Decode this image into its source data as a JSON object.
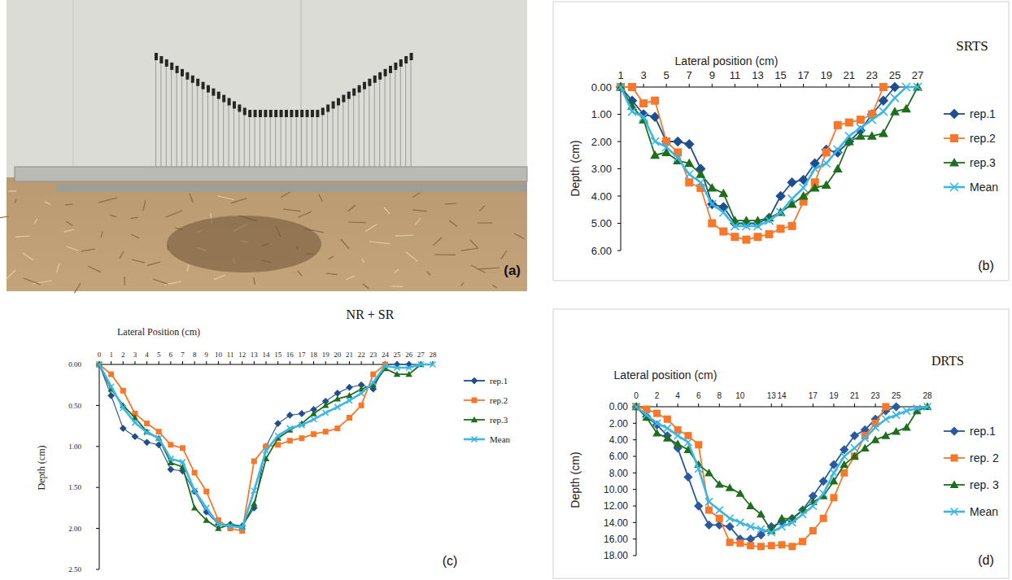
{
  "photo": {
    "panel": "(a)"
  },
  "chart_data": [
    {
      "type": "line",
      "title": "SRTS",
      "panel": "(b)",
      "x_label": "Lateral position (cm)",
      "y_label": "Depth (cm)",
      "x": [
        1,
        2,
        3,
        4,
        5,
        6,
        7,
        8,
        9,
        10,
        11,
        12,
        13,
        14,
        15,
        16,
        17,
        18,
        19,
        20,
        21,
        22,
        23,
        24,
        25,
        26,
        27
      ],
      "xlim": [
        1,
        27
      ],
      "xticks": [
        1,
        3,
        5,
        7,
        9,
        11,
        13,
        15,
        17,
        19,
        21,
        23,
        25,
        27
      ],
      "ylim": [
        0,
        6
      ],
      "yticks": [
        {
          "value": 0,
          "label": "0.00"
        },
        {
          "value": 1,
          "label": "1.00"
        },
        {
          "value": 2,
          "label": "2.00"
        },
        {
          "value": 3,
          "label": "3.00"
        },
        {
          "value": 4,
          "label": "4.00"
        },
        {
          "value": 5,
          "label": "5.00"
        },
        {
          "value": 6,
          "label": "6.00"
        }
      ],
      "legend": "right",
      "series": [
        {
          "name": "rep.1",
          "color": "#1f4e8c",
          "marker": "diamond",
          "values": [
            0,
            0.5,
            1.0,
            1.1,
            2.0,
            2.0,
            2.1,
            3.0,
            4.3,
            4.4,
            5.0,
            5.0,
            5.0,
            4.8,
            4.0,
            3.5,
            3.4,
            2.8,
            2.3,
            2.4,
            2.0,
            1.6,
            1.0,
            0.5,
            0,
            null,
            null
          ]
        },
        {
          "name": "rep.2",
          "color": "#f7782a",
          "marker": "square",
          "values": [
            0,
            0,
            0.6,
            0.5,
            2.0,
            2.4,
            3.5,
            3.7,
            5.0,
            5.3,
            5.5,
            5.6,
            5.5,
            5.4,
            5.2,
            5.1,
            4.2,
            3.5,
            2.4,
            1.4,
            1.3,
            1.2,
            1.0,
            0,
            null,
            null,
            null
          ]
        },
        {
          "name": "rep.3",
          "color": "#1e6e1e",
          "marker": "triangle",
          "values": [
            0,
            0.7,
            1.2,
            2.5,
            2.4,
            2.7,
            2.8,
            3.2,
            3.7,
            3.9,
            4.9,
            4.9,
            4.9,
            4.8,
            4.6,
            4.3,
            4.0,
            3.7,
            3.6,
            3.0,
            2.0,
            1.8,
            1.8,
            1.7,
            0.9,
            0.8,
            0
          ]
        },
        {
          "name": "Mean",
          "color": "#3bb6e6",
          "marker": "x",
          "values": [
            0,
            0.9,
            1.1,
            2.0,
            2.2,
            2.6,
            3.2,
            3.5,
            4.3,
            4.6,
            5.1,
            5.1,
            5.1,
            4.9,
            4.6,
            4.1,
            3.7,
            3.0,
            2.8,
            2.3,
            1.8,
            1.5,
            1.2,
            0.9,
            0.4,
            0,
            0
          ]
        }
      ]
    },
    {
      "type": "line",
      "title": "NR + SR",
      "panel": "(c)",
      "x_label": "Lateral Position (cm)",
      "y_label": "Depth (cm)",
      "x": [
        0,
        1,
        2,
        3,
        4,
        5,
        6,
        7,
        8,
        9,
        10,
        11,
        12,
        13,
        14,
        15,
        16,
        17,
        18,
        19,
        20,
        21,
        22,
        23,
        24,
        25,
        26,
        27,
        28
      ],
      "xlim": [
        0,
        28
      ],
      "xticks": [
        0,
        1,
        2,
        3,
        4,
        5,
        6,
        7,
        8,
        9,
        10,
        11,
        12,
        13,
        14,
        15,
        16,
        17,
        18,
        19,
        20,
        21,
        22,
        23,
        24,
        25,
        26,
        27,
        28
      ],
      "ylim": [
        0,
        2.5
      ],
      "yticks": [
        {
          "value": 0,
          "label": "0.00"
        },
        {
          "value": 0.5,
          "label": "0.50"
        },
        {
          "value": 1,
          "label": "1.00"
        },
        {
          "value": 1.5,
          "label": "1.50"
        },
        {
          "value": 2,
          "label": "2.00"
        },
        {
          "value": 2.5,
          "label": "2.50"
        }
      ],
      "legend": "right",
      "series": [
        {
          "name": "rep.1",
          "color": "#1f4e8c",
          "marker": "diamond",
          "values": [
            0,
            0.38,
            0.78,
            0.88,
            0.95,
            0.98,
            1.28,
            1.3,
            1.55,
            1.8,
            1.95,
            1.95,
            1.97,
            1.75,
            1.0,
            0.72,
            0.62,
            0.6,
            0.55,
            0.45,
            0.35,
            0.28,
            0.25,
            0.3,
            0,
            0,
            0,
            null,
            null
          ]
        },
        {
          "name": "rep.2",
          "color": "#f7782a",
          "marker": "square",
          "values": [
            0,
            0.12,
            0.32,
            0.6,
            0.72,
            0.82,
            0.98,
            1.02,
            1.32,
            1.55,
            1.9,
            2.0,
            2.03,
            1.18,
            1.0,
            0.98,
            0.93,
            0.9,
            0.85,
            0.82,
            0.78,
            0.65,
            0.5,
            0.12,
            0,
            null,
            null,
            null,
            null
          ]
        },
        {
          "name": "rep.3",
          "color": "#1e6e1e",
          "marker": "triangle",
          "values": [
            0,
            0.3,
            0.5,
            0.65,
            0.82,
            0.9,
            1.2,
            1.25,
            1.75,
            1.9,
            2.0,
            1.95,
            1.98,
            1.7,
            1.15,
            0.9,
            0.8,
            0.72,
            0.6,
            0.5,
            0.42,
            0.38,
            0.3,
            0.25,
            0.05,
            0.12,
            0.12,
            0,
            null
          ]
        },
        {
          "name": "Mean",
          "color": "#3bb6e6",
          "marker": "x",
          "values": [
            0,
            0.27,
            0.53,
            0.71,
            0.83,
            0.9,
            1.15,
            1.19,
            1.54,
            1.75,
            1.95,
            1.97,
            1.99,
            1.54,
            1.05,
            0.87,
            0.78,
            0.74,
            0.67,
            0.59,
            0.52,
            0.44,
            0.35,
            0.22,
            0.02,
            0.04,
            0.04,
            0,
            0
          ]
        }
      ]
    },
    {
      "type": "line",
      "title": "DRTS",
      "panel": "(d)",
      "x_label": "Lateral position (cm)",
      "y_label": "Depth (cm)",
      "x": [
        0,
        1,
        2,
        3,
        4,
        5,
        6,
        7,
        8,
        9,
        10,
        11,
        12,
        13,
        14,
        15,
        16,
        17,
        18,
        19,
        20,
        21,
        22,
        23,
        24,
        25,
        26,
        27,
        28
      ],
      "xlim": [
        0,
        28
      ],
      "xticks": [
        0,
        2,
        4,
        6,
        8,
        10,
        13,
        14,
        17,
        19,
        21,
        23,
        25,
        28
      ],
      "ylim": [
        0,
        18
      ],
      "yticks": [
        {
          "value": 0,
          "label": "0.00"
        },
        {
          "value": 2,
          "label": "2.00"
        },
        {
          "value": 4,
          "label": "4.00"
        },
        {
          "value": 6,
          "label": "6.00"
        },
        {
          "value": 8,
          "label": "8.00"
        },
        {
          "value": 10,
          "label": "10.00"
        },
        {
          "value": 12,
          "label": "12.00"
        },
        {
          "value": 14,
          "label": "14.00"
        },
        {
          "value": 16,
          "label": "16.00"
        },
        {
          "value": 18,
          "label": "18.00"
        }
      ],
      "legend": "right",
      "series": [
        {
          "name": "rep.1",
          "color": "#2a5a9e",
          "marker": "diamond",
          "values": [
            0,
            1.2,
            2.2,
            3.5,
            5.0,
            8.5,
            12.0,
            14.3,
            14.3,
            14.5,
            16.0,
            16.0,
            15.5,
            14.5,
            14.0,
            13.5,
            12.5,
            10.8,
            9.0,
            7.0,
            5.2,
            3.5,
            2.8,
            1.5,
            0.5,
            0,
            null,
            null,
            null
          ]
        },
        {
          "name": "rep. 2",
          "color": "#f7782a",
          "marker": "square",
          "values": [
            0,
            0.3,
            0.8,
            1.5,
            2.8,
            3.5,
            4.6,
            12.5,
            13.5,
            16.4,
            16.5,
            16.8,
            16.9,
            16.8,
            16.7,
            16.9,
            16.3,
            15.0,
            13.5,
            11.0,
            8.0,
            6.0,
            3.5,
            2.0,
            0,
            null,
            null,
            null,
            null
          ]
        },
        {
          "name": "rep. 3",
          "color": "#1e6e1e",
          "marker": "triangle",
          "values": [
            0,
            1.3,
            3.2,
            3.8,
            4.5,
            5.2,
            7.0,
            8.0,
            9.4,
            9.8,
            10.5,
            12.0,
            13.0,
            15.0,
            13.5,
            13.6,
            12.5,
            11.5,
            10.8,
            9.0,
            7.0,
            6.0,
            5.0,
            4.0,
            3.5,
            3.0,
            2.5,
            0.5,
            0
          ]
        },
        {
          "name": "Mean",
          "color": "#3bb6e6",
          "marker": "x",
          "values": [
            0,
            1.0,
            2.0,
            2.6,
            3.5,
            4.3,
            7.5,
            11.5,
            12.5,
            13.5,
            14.0,
            14.5,
            14.8,
            15.2,
            14.5,
            14.0,
            13.0,
            12.0,
            10.5,
            8.0,
            6.0,
            5.0,
            3.8,
            2.5,
            1.5,
            1.0,
            0.5,
            0.2,
            0
          ]
        }
      ]
    }
  ]
}
